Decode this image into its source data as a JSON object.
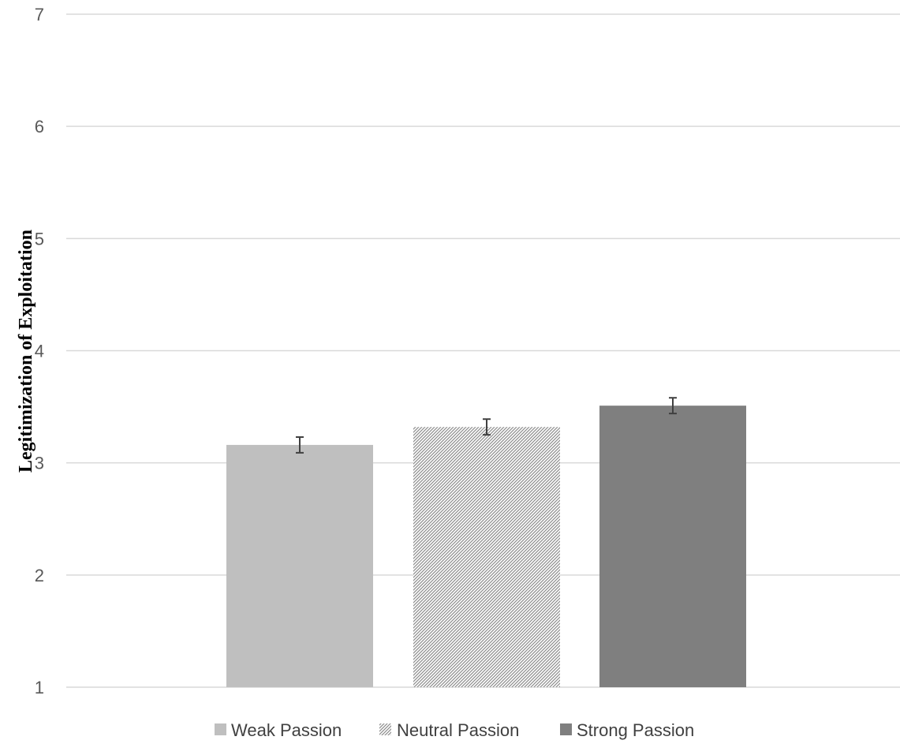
{
  "chart_data": {
    "type": "bar",
    "categories": [
      "Weak Passion",
      "Neutral Passion",
      "Strong Passion"
    ],
    "values": [
      3.16,
      3.32,
      3.51
    ],
    "error": [
      0.07,
      0.07,
      0.07
    ],
    "ylabel": "Legitimization of Exploitation",
    "xlabel": "",
    "ylim": [
      1,
      7
    ],
    "yticks": [
      "1",
      "2",
      "3",
      "4",
      "5",
      "6",
      "7"
    ],
    "grid": true,
    "legend_placement": "bottom",
    "legend": [
      "Weak Passion",
      "Neutral Passion",
      "Strong Passion"
    ],
    "colors": [
      "#bfbfbf",
      "#8c8c8c",
      "#7f7f7f"
    ],
    "patterns": [
      "solid",
      "diagonal-hatch",
      "solid"
    ]
  }
}
